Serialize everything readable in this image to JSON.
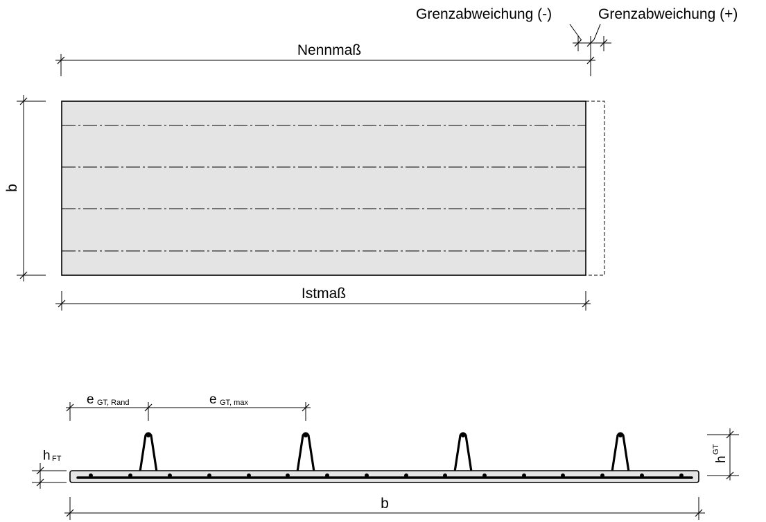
{
  "top_view": {
    "nominal_label": "Nennmaß",
    "actual_label": "Istmaß",
    "width_label": "b",
    "tolerance_minus_label": "Grenzabweichung (-)",
    "tolerance_plus_label": "Grenzabweichung (+)",
    "lattice_girder_lines": 4
  },
  "section_view": {
    "edge_spacing_label_base": "e",
    "edge_spacing_label_sub": "GT, Rand",
    "max_spacing_label_base": "e",
    "max_spacing_label_sub": "GT, max",
    "slab_thickness_label_base": "h",
    "slab_thickness_label_sub": "FT",
    "girder_height_label_base": "h",
    "girder_height_label_sup": "GT",
    "width_label": "b",
    "girder_count": 4,
    "rebar_dot_count": 17
  },
  "colors": {
    "panel_fill": "#e4e4e4",
    "line": "#000000"
  }
}
